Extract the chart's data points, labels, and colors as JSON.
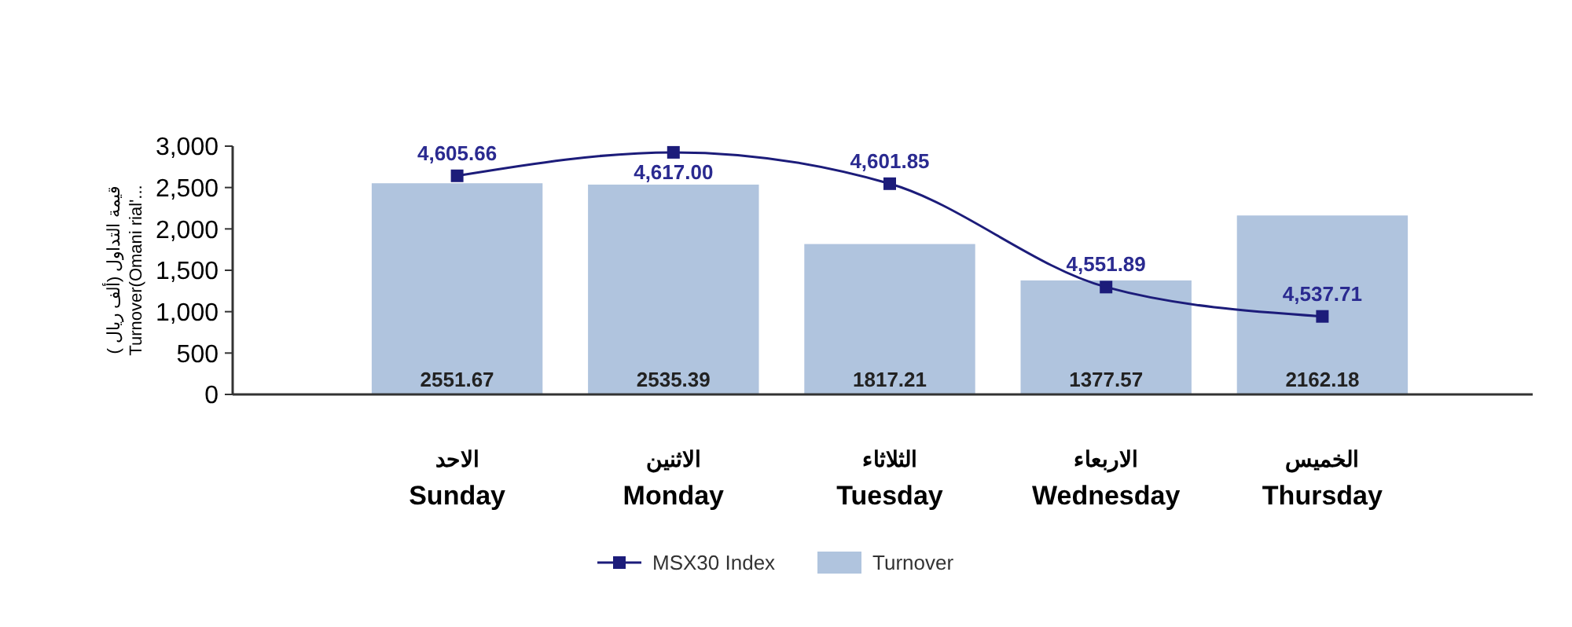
{
  "chart_data": {
    "type": "bar",
    "categories": [
      "الاحد\nSunday",
      "الاثنين\nMonday",
      "الثلاثاء\nTuesday",
      "الاربعاء\nWednesday",
      "الخميس\nThursday"
    ],
    "ylabel": "( قيمة التداول (ألف ريال\nTurnover(Omani rial'...",
    "series": [
      {
        "name": "Turnover",
        "color": "#b0c4de",
        "values": [
          2551.67,
          2535.39,
          1817.21,
          1377.57,
          2162.18
        ]
      },
      {
        "name": "MSX30 Index",
        "type": "line",
        "axis": "y2",
        "color": "#1c1c7a",
        "values": [
          4605.66,
          4617.0,
          4601.85,
          4551.89,
          4537.71
        ],
        "value_labels": [
          "4,605.66",
          "4,617.00",
          "4,601.85",
          "4,551.89",
          "4,537.71"
        ]
      }
    ],
    "ylim": [
      0,
      3000
    ],
    "yticks": [
      {
        "value": 0,
        "label": "0"
      },
      {
        "value": 500,
        "label": "500"
      },
      {
        "value": 1000,
        "label": "1,000"
      },
      {
        "value": 1500,
        "label": "1,500"
      },
      {
        "value": 2000,
        "label": "2,000"
      },
      {
        "value": 2500,
        "label": "2,500"
      },
      {
        "value": 3000,
        "label": "3,000"
      }
    ],
    "y2lim": [
      4500,
      4620
    ],
    "data_labels": true,
    "marker": "square",
    "legend": "bottom",
    "grid": false
  }
}
